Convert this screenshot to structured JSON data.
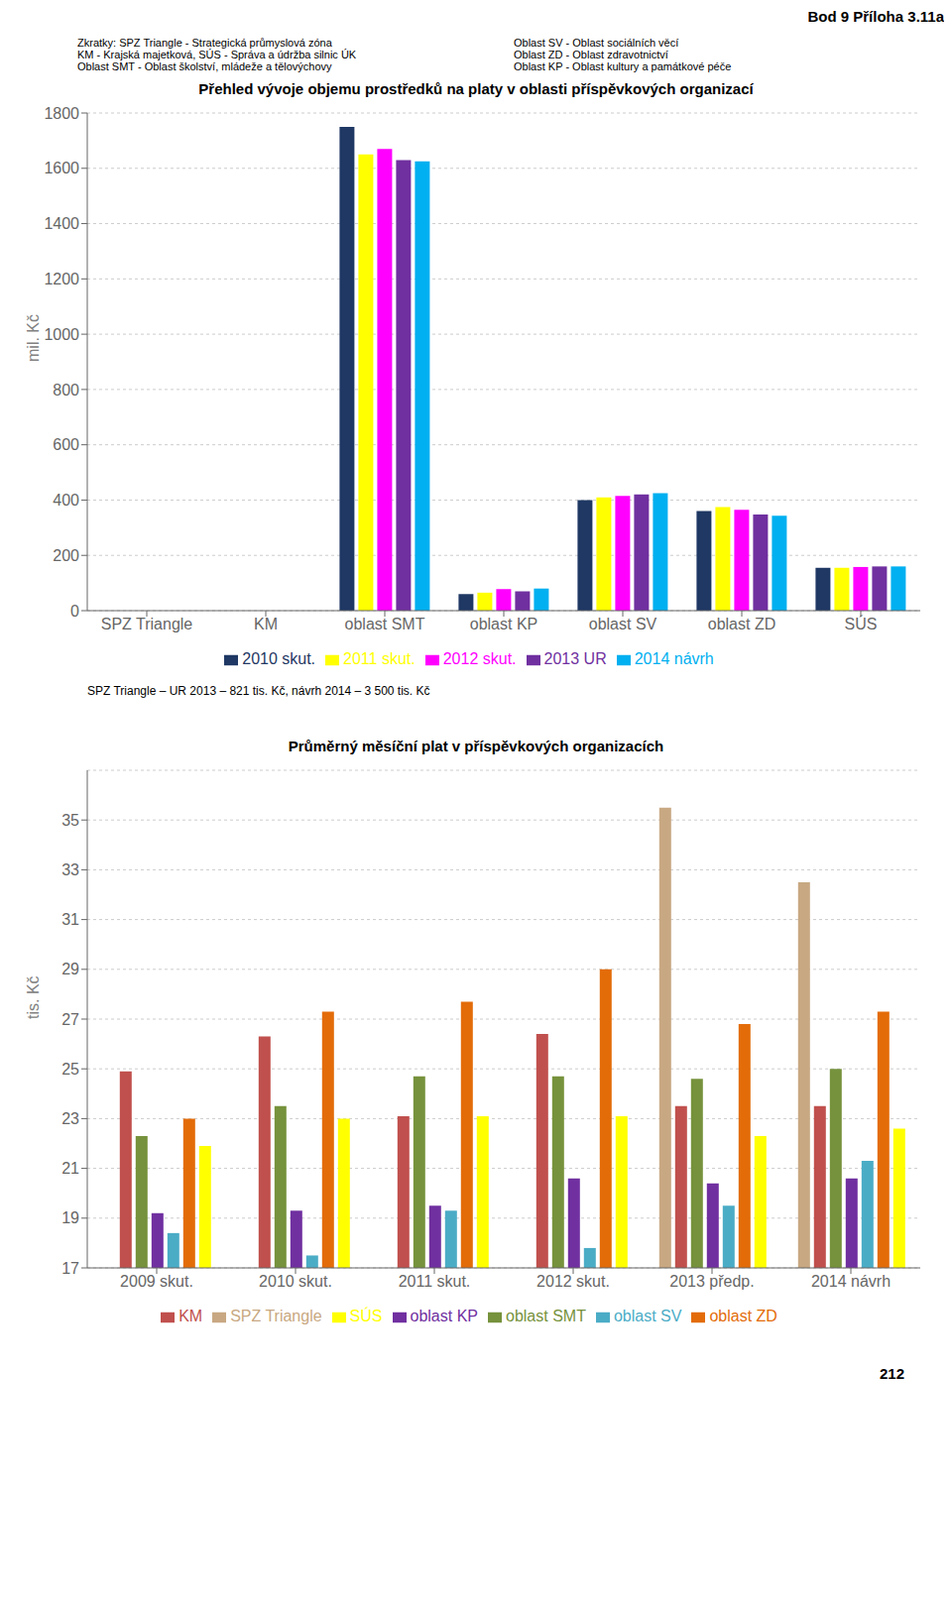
{
  "chart_data": [
    {
      "type": "bar",
      "title": "Přehled vývoje objemu prostředků na platy v oblasti příspěvkových organizací",
      "ylabel": "mil. Kč",
      "categories": [
        "SPZ Triangle",
        "KM",
        "oblast SMT",
        "oblast KP",
        "oblast SV",
        "oblast ZD",
        "SÚS"
      ],
      "series": [
        {
          "name": "2010 skut.",
          "color": "#1F3864",
          "values": [
            0,
            0,
            1750,
            60,
            400,
            360,
            155
          ]
        },
        {
          "name": "2011 skut.",
          "color": "#FFFF00",
          "values": [
            0,
            0,
            1650,
            65,
            410,
            375,
            155
          ]
        },
        {
          "name": "2012 skut.",
          "color": "#FF00FF",
          "values": [
            0,
            0,
            1670,
            78,
            415,
            365,
            158
          ]
        },
        {
          "name": "2013 UR",
          "color": "#7030A0",
          "values": [
            0,
            0,
            1630,
            70,
            420,
            348,
            160
          ]
        },
        {
          "name": "2014 návrh",
          "color": "#00B0F0",
          "values": [
            0,
            0,
            1625,
            80,
            425,
            343,
            160
          ]
        }
      ],
      "ylim": [
        0,
        1800
      ],
      "yticks": [
        0,
        200,
        400,
        600,
        800,
        1000,
        1200,
        1400,
        1600,
        1800
      ],
      "grid": true,
      "legend": "bottom",
      "annotations": [
        "Bod 9 Příloha 3.11a",
        "Zkratky: SPZ Triangle - Strategická průmyslová zóna",
        "KM - Krajská majetková, SÚS - Správa a údržba silnic ÚK",
        "Oblast SMT - Oblast  školství, mládeže a tělovýchovy",
        "Oblast SV - Oblast sociálních věcí",
        "Oblast ZD - Oblast zdravotnictví",
        "Oblast KP - Oblast kultury a památkové péče",
        "SPZ Triangle – UR 2013 – 821 tis. Kč, návrh 2014 – 3 500 tis. Kč"
      ]
    },
    {
      "type": "bar",
      "title": "Průměrný měsíční plat v  příspěvkových organizacích",
      "ylabel": "tis. Kč",
      "categories": [
        "2009 skut.",
        "2010 skut.",
        "2011 skut.",
        "2012 skut.",
        "2013 předp.",
        "2014 návrh"
      ],
      "series": [
        {
          "name": "SPZ Triangle",
          "color": "#C8A882",
          "values": [
            null,
            null,
            null,
            null,
            35.5,
            32.5
          ]
        },
        {
          "name": "KM",
          "color": "#C0504D",
          "values": [
            24.9,
            26.3,
            23.1,
            26.4,
            23.5,
            23.5
          ]
        },
        {
          "name": "oblast SMT",
          "color": "#76923C",
          "values": [
            22.3,
            23.5,
            24.7,
            24.7,
            24.6,
            25.0
          ]
        },
        {
          "name": "oblast KP",
          "color": "#7030A0",
          "values": [
            19.2,
            19.3,
            19.5,
            20.6,
            20.4,
            20.6
          ]
        },
        {
          "name": "oblast SV",
          "color": "#4BACC6",
          "values": [
            18.4,
            17.5,
            19.3,
            17.8,
            19.5,
            21.3
          ]
        },
        {
          "name": "oblast ZD",
          "color": "#E36C09",
          "values": [
            23.0,
            27.3,
            27.7,
            29.0,
            26.8,
            27.3
          ]
        },
        {
          "name": "SÚS",
          "color": "#FFFF00",
          "values": [
            21.9,
            23.0,
            23.1,
            23.1,
            22.3,
            22.6
          ]
        }
      ],
      "ylim": [
        17,
        37
      ],
      "yticks": [
        17,
        19,
        21,
        23,
        25,
        27,
        29,
        31,
        33,
        35
      ],
      "grid": true,
      "legend": "bottom",
      "annotations": [
        "212"
      ]
    }
  ]
}
